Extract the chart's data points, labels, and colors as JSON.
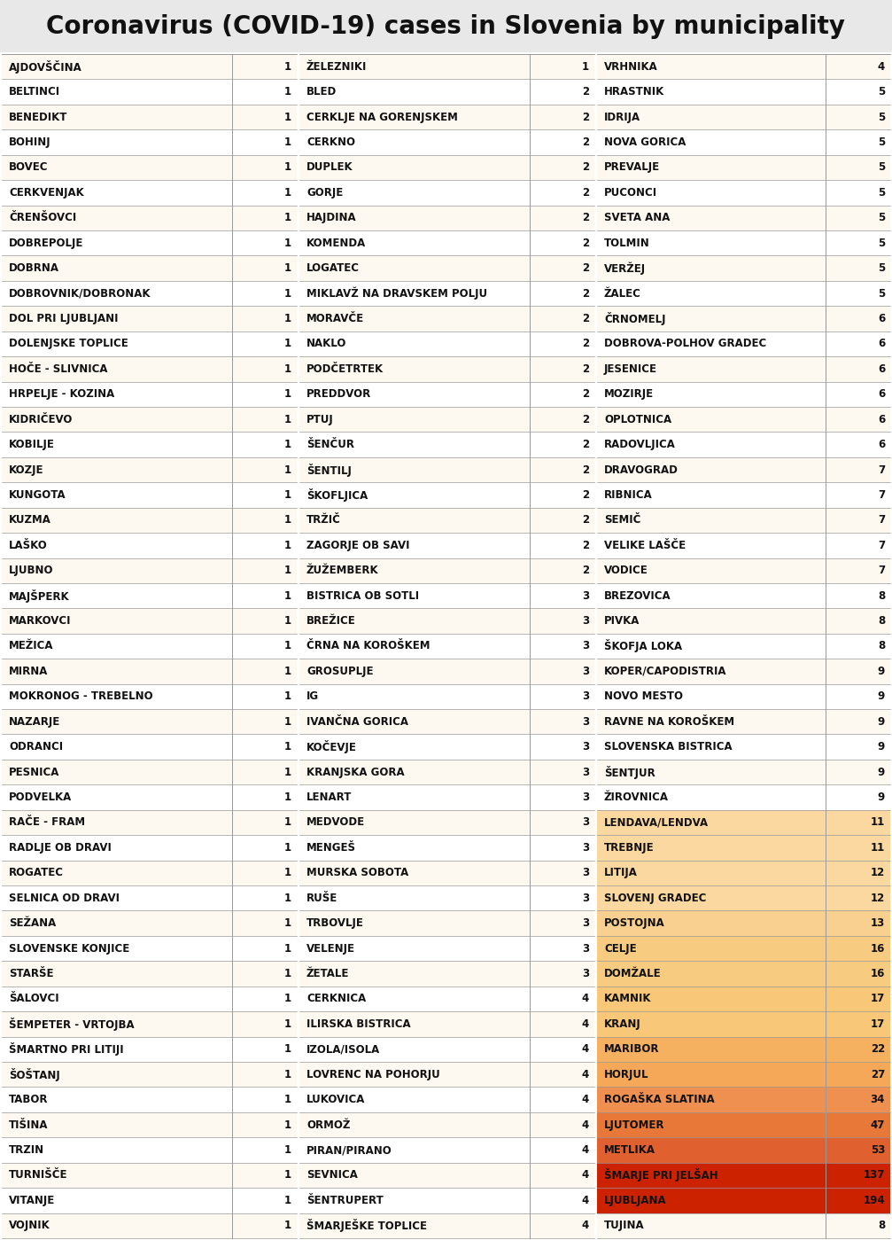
{
  "title": "Coronavirus (COVID-19) cases in Slovenia by municipality",
  "col1": [
    [
      "AJDOVŠČINA",
      1
    ],
    [
      "BELTINCI",
      1
    ],
    [
      "BENEDIKT",
      1
    ],
    [
      "BOHINJ",
      1
    ],
    [
      "BOVEC",
      1
    ],
    [
      "CERKVENJAK",
      1
    ],
    [
      "ČRENŠOVCI",
      1
    ],
    [
      "DOBREPOLJE",
      1
    ],
    [
      "DOBRNA",
      1
    ],
    [
      "DOBROVNIK/DOBRONAK",
      1
    ],
    [
      "DOL PRI LJUBLJANI",
      1
    ],
    [
      "DOLENJSKE TOPLICE",
      1
    ],
    [
      "HOČE - SLIVNICA",
      1
    ],
    [
      "HRPELJE - KOZINA",
      1
    ],
    [
      "KIDRIČEVO",
      1
    ],
    [
      "KOBILJE",
      1
    ],
    [
      "KOZJE",
      1
    ],
    [
      "KUNGOTA",
      1
    ],
    [
      "KUZMA",
      1
    ],
    [
      "LAŠKO",
      1
    ],
    [
      "LJUBNO",
      1
    ],
    [
      "MAJŠPERK",
      1
    ],
    [
      "MARKOVCI",
      1
    ],
    [
      "MEŽICA",
      1
    ],
    [
      "MIRNA",
      1
    ],
    [
      "MOKRONOG - TREBELNO",
      1
    ],
    [
      "NAZARJE",
      1
    ],
    [
      "ODRANCI",
      1
    ],
    [
      "PESNICA",
      1
    ],
    [
      "PODVELKA",
      1
    ],
    [
      "RAČE - FRAM",
      1
    ],
    [
      "RADLJE OB DRAVI",
      1
    ],
    [
      "ROGATEC",
      1
    ],
    [
      "SELNICA OD DRAVI",
      1
    ],
    [
      "SEŽANA",
      1
    ],
    [
      "SLOVENSKE KONJICE",
      1
    ],
    [
      "STARŠE",
      1
    ],
    [
      "ŠALOVCI",
      1
    ],
    [
      "ŠEMPETER - VRTOJBA",
      1
    ],
    [
      "ŠMARTNO PRI LITIJI",
      1
    ],
    [
      "ŠOŠTANJ",
      1
    ],
    [
      "TABOR",
      1
    ],
    [
      "TIŠINA",
      1
    ],
    [
      "TRZIN",
      1
    ],
    [
      "TURNIŠČE",
      1
    ],
    [
      "VITANJE",
      1
    ],
    [
      "VOJNIK",
      1
    ]
  ],
  "col2": [
    [
      "ŽELEZNIKI",
      1
    ],
    [
      "BLED",
      2
    ],
    [
      "CERKLJE NA GORENJSKEM",
      2
    ],
    [
      "CERKNO",
      2
    ],
    [
      "DUPLEK",
      2
    ],
    [
      "GORJE",
      2
    ],
    [
      "HAJDINA",
      2
    ],
    [
      "KOMENDA",
      2
    ],
    [
      "LOGATEC",
      2
    ],
    [
      "MIKLAVŽ NA DRAVSKEM POLJU",
      2
    ],
    [
      "MORAVČE",
      2
    ],
    [
      "NAKLO",
      2
    ],
    [
      "PODČETRTEK",
      2
    ],
    [
      "PREDDVOR",
      2
    ],
    [
      "PTUJ",
      2
    ],
    [
      "ŠENČUR",
      2
    ],
    [
      "ŠENTILJ",
      2
    ],
    [
      "ŠKOFLJICA",
      2
    ],
    [
      "TRŽIČ",
      2
    ],
    [
      "ZAGORJE OB SAVI",
      2
    ],
    [
      "ŽUŽEMBERK",
      2
    ],
    [
      "BISTRICA OB SOTLI",
      3
    ],
    [
      "BREŽICE",
      3
    ],
    [
      "ČRNA NA KOROŠKEM",
      3
    ],
    [
      "GROSUPLJE",
      3
    ],
    [
      "IG",
      3
    ],
    [
      "IVANČNA GORICA",
      3
    ],
    [
      "KOČEVJE",
      3
    ],
    [
      "KRANJSKA GORA",
      3
    ],
    [
      "LENART",
      3
    ],
    [
      "MEDVODE",
      3
    ],
    [
      "MENGEŠ",
      3
    ],
    [
      "MURSKA SOBOTA",
      3
    ],
    [
      "RUŠE",
      3
    ],
    [
      "TRBOVLJE",
      3
    ],
    [
      "VELENJE",
      3
    ],
    [
      "ŽETALE",
      3
    ],
    [
      "CERKNICA",
      4
    ],
    [
      "ILIRSKA BISTRICA",
      4
    ],
    [
      "IZOLA/ISOLA",
      4
    ],
    [
      "LOVRENC NA POHORJU",
      4
    ],
    [
      "LUKOVICA",
      4
    ],
    [
      "ORMOŽ",
      4
    ],
    [
      "PIRAN/PIRANO",
      4
    ],
    [
      "SEVNICA",
      4
    ],
    [
      "ŠENTRUPERT",
      4
    ],
    [
      "ŠMARJEŠKE TOPLICE",
      4
    ]
  ],
  "col3": [
    [
      "VRHNIKA",
      4
    ],
    [
      "HRASTNIK",
      5
    ],
    [
      "IDRIJA",
      5
    ],
    [
      "NOVA GORICA",
      5
    ],
    [
      "PREVALJE",
      5
    ],
    [
      "PUCONCI",
      5
    ],
    [
      "SVETA ANA",
      5
    ],
    [
      "TOLMIN",
      5
    ],
    [
      "VERŽEJ",
      5
    ],
    [
      "ŽALEC",
      5
    ],
    [
      "ČRNOMELJ",
      6
    ],
    [
      "DOBROVA-POLHOV GRADEC",
      6
    ],
    [
      "JESENICE",
      6
    ],
    [
      "MOZIRJE",
      6
    ],
    [
      "OPLOTNICA",
      6
    ],
    [
      "RADOVLJICA",
      6
    ],
    [
      "DRAVOGRAD",
      7
    ],
    [
      "RIBNICA",
      7
    ],
    [
      "SEMIČ",
      7
    ],
    [
      "VELIKE LAŠČE",
      7
    ],
    [
      "VODICE",
      7
    ],
    [
      "BREZOVICA",
      8
    ],
    [
      "PIVKA",
      8
    ],
    [
      "ŠKOFJA LOKA",
      8
    ],
    [
      "KOPER/CAPODISTRIA",
      9
    ],
    [
      "NOVO MESTO",
      9
    ],
    [
      "RAVNE NA KOROŠKEM",
      9
    ],
    [
      "SLOVENSKA BISTRICA",
      9
    ],
    [
      "ŠENTJUR",
      9
    ],
    [
      "ŽIROVNICA",
      9
    ],
    [
      "LENDAVA/LENDVA",
      11
    ],
    [
      "TREBNJE",
      11
    ],
    [
      "LITIJA",
      12
    ],
    [
      "SLOVENJ GRADEC",
      12
    ],
    [
      "POSTOJNA",
      13
    ],
    [
      "CELJE",
      16
    ],
    [
      "DOMŽALE",
      16
    ],
    [
      "KAMNIK",
      17
    ],
    [
      "KRANJ",
      17
    ],
    [
      "MARIBOR",
      22
    ],
    [
      "HORJUL",
      27
    ],
    [
      "ROGAŠKA SLATINA",
      34
    ],
    [
      "LJUTOMER",
      47
    ],
    [
      "METLIKA",
      53
    ],
    [
      "ŠMARJE PRI JELŠAH",
      137
    ],
    [
      "LJUBLJANA",
      194
    ],
    [
      "TUJINA",
      8
    ]
  ],
  "bg_color": "#ffffff",
  "row_even_color": "#fdf8f0",
  "row_odd_color": "#ffffff",
  "border_color": "#999999",
  "text_color": "#111111",
  "title_color": "#111111",
  "title_bg": "#e8e8e8",
  "highlight_10_20": "#fce5b0",
  "highlight_20_30": "#f5c170",
  "highlight_30_50": "#f0a050",
  "highlight_50_100": "#e87840",
  "highlight_100_200": "#cc2200",
  "highlight_194": "#cc2200"
}
